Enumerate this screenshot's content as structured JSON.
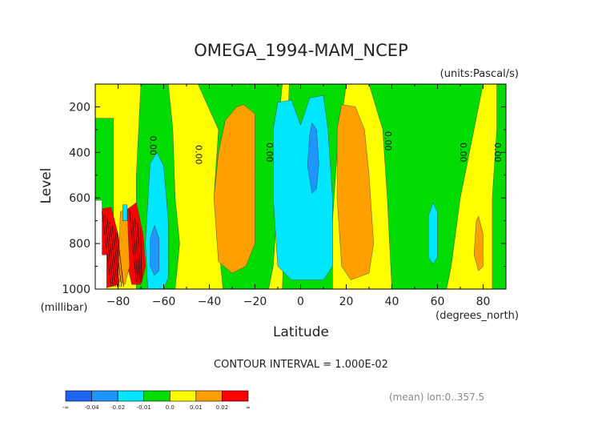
{
  "chart_data": {
    "type": "contour",
    "title": "OMEGA_1994-MAM_NCEP",
    "units_label": "(units:Pascal/s)",
    "xlabel": "Latitude",
    "x_units_label": "(degrees_north)",
    "ylabel": "Level",
    "y_units_label": "(millibar)",
    "xlim": [
      -90,
      90
    ],
    "ylim": [
      1000,
      100
    ],
    "x_ticks": [
      -80,
      -60,
      -40,
      -20,
      0,
      20,
      40,
      60,
      80
    ],
    "y_ticks": [
      200,
      400,
      600,
      800,
      1000
    ],
    "contour_interval_text": "CONTOUR INTERVAL = 1.000E-02",
    "footer_text": "(mean) lon:0..357.5",
    "zero_contour_label": "0.00",
    "zero_label_positions": [
      {
        "lat": -66,
        "lev": 370
      },
      {
        "lat": -46,
        "lev": 410
      },
      {
        "lat": -15,
        "lev": 400
      },
      {
        "lat": 37,
        "lev": 350
      },
      {
        "lat": 70,
        "lev": 400
      },
      {
        "lat": 85,
        "lev": 400
      }
    ],
    "legend": {
      "levels": [
        "-∞",
        "-0.04",
        "-0.02",
        "-0.01",
        "0.0",
        "0.01",
        "0.02",
        "∞"
      ],
      "colors": [
        "#1e64f0",
        "#1e96ff",
        "#00e6ff",
        "#00dc00",
        "#ffff00",
        "#ffa000",
        "#ff0000"
      ]
    },
    "regions": [
      {
        "name": "green-band-s70",
        "color": "#00dc00",
        "points": [
          [
            -70,
            100
          ],
          [
            -58,
            100
          ],
          [
            -56,
            300
          ],
          [
            -55,
            600
          ],
          [
            -53,
            800
          ],
          [
            -55,
            1000
          ],
          [
            -72,
            1000
          ],
          [
            -72,
            500
          ]
        ]
      },
      {
        "name": "green-band-s20",
        "color": "#00dc00",
        "points": [
          [
            -45,
            100
          ],
          [
            -8,
            100
          ],
          [
            -10,
            300
          ],
          [
            -10,
            600
          ],
          [
            -12,
            900
          ],
          [
            -14,
            1000
          ],
          [
            -34,
            1000
          ],
          [
            -38,
            600
          ],
          [
            -36,
            300
          ]
        ]
      },
      {
        "name": "green-band-s5",
        "color": "#00dc00",
        "points": [
          [
            -5,
            100
          ],
          [
            20,
            100
          ],
          [
            16,
            400
          ],
          [
            14,
            700
          ],
          [
            14,
            1000
          ],
          [
            -8,
            1000
          ]
        ]
      },
      {
        "name": "green-band-n40",
        "color": "#00dc00",
        "points": [
          [
            30,
            100
          ],
          [
            80,
            100
          ],
          [
            76,
            300
          ],
          [
            70,
            600
          ],
          [
            66,
            900
          ],
          [
            64,
            1000
          ],
          [
            40,
            1000
          ],
          [
            38,
            600
          ],
          [
            36,
            300
          ]
        ]
      },
      {
        "name": "green-band-n90",
        "color": "#00dc00",
        "points": [
          [
            86,
            100
          ],
          [
            90,
            100
          ],
          [
            90,
            1000
          ],
          [
            84,
            1000
          ],
          [
            84,
            600
          ],
          [
            86,
            300
          ]
        ]
      },
      {
        "name": "green-patch-sw",
        "color": "#00dc00",
        "points": [
          [
            -90,
            250
          ],
          [
            -82,
            250
          ],
          [
            -82,
            700
          ],
          [
            -90,
            700
          ]
        ]
      },
      {
        "name": "orange-blob-s25",
        "color": "#ffa000",
        "points": [
          [
            -25,
            190
          ],
          [
            -20,
            230
          ],
          [
            -20,
            500
          ],
          [
            -20,
            800
          ],
          [
            -24,
            900
          ],
          [
            -30,
            930
          ],
          [
            -36,
            880
          ],
          [
            -38,
            600
          ],
          [
            -36,
            400
          ],
          [
            -33,
            260
          ],
          [
            -28,
            200
          ]
        ]
      },
      {
        "name": "orange-blob-n20",
        "color": "#ffa000",
        "points": [
          [
            18,
            190
          ],
          [
            24,
            200
          ],
          [
            28,
            300
          ],
          [
            30,
            500
          ],
          [
            32,
            800
          ],
          [
            30,
            930
          ],
          [
            22,
            960
          ],
          [
            18,
            900
          ],
          [
            16,
            600
          ],
          [
            16,
            300
          ]
        ]
      },
      {
        "name": "orange-strip-n80",
        "color": "#ffa000",
        "points": [
          [
            78,
            680
          ],
          [
            80,
            760
          ],
          [
            80,
            900
          ],
          [
            78,
            920
          ],
          [
            76,
            850
          ],
          [
            77,
            700
          ]
        ]
      },
      {
        "name": "cyan-band-s60",
        "color": "#00e6ff",
        "points": [
          [
            -63,
            400
          ],
          [
            -60,
            460
          ],
          [
            -58,
            700
          ],
          [
            -58,
            950
          ],
          [
            -60,
            1000
          ],
          [
            -67,
            1000
          ],
          [
            -68,
            800
          ],
          [
            -66,
            450
          ]
        ]
      },
      {
        "name": "cyan-band-eq",
        "color": "#00e6ff",
        "points": [
          [
            -10,
            180
          ],
          [
            -4,
            170
          ],
          [
            0,
            280
          ],
          [
            4,
            160
          ],
          [
            10,
            150
          ],
          [
            12,
            300
          ],
          [
            14,
            600
          ],
          [
            14,
            900
          ],
          [
            10,
            960
          ],
          [
            -4,
            960
          ],
          [
            -10,
            900
          ],
          [
            -12,
            600
          ],
          [
            -12,
            300
          ]
        ]
      },
      {
        "name": "cyan-strip-n60",
        "color": "#00e6ff",
        "points": [
          [
            58,
            620
          ],
          [
            60,
            660
          ],
          [
            60,
            860
          ],
          [
            58,
            890
          ],
          [
            56,
            860
          ],
          [
            56,
            680
          ]
        ]
      },
      {
        "name": "blue-strip-s63",
        "color": "#1e96ff",
        "points": [
          [
            -64,
            720
          ],
          [
            -62,
            780
          ],
          [
            -62,
            920
          ],
          [
            -64,
            940
          ],
          [
            -66,
            900
          ],
          [
            -66,
            780
          ]
        ]
      },
      {
        "name": "blue-strip-eq",
        "color": "#1e96ff",
        "points": [
          [
            5,
            270
          ],
          [
            7,
            300
          ],
          [
            8,
            450
          ],
          [
            7,
            560
          ],
          [
            5,
            580
          ],
          [
            3,
            460
          ],
          [
            4,
            320
          ]
        ]
      },
      {
        "name": "red-plume-s80",
        "color": "#ff0000",
        "points": [
          [
            -88,
            650
          ],
          [
            -83,
            640
          ],
          [
            -80,
            760
          ],
          [
            -78,
            880
          ],
          [
            -80,
            980
          ],
          [
            -87,
            1000
          ],
          [
            -88,
            800
          ]
        ]
      },
      {
        "name": "red-plume-s72",
        "color": "#ff0000",
        "points": [
          [
            -76,
            650
          ],
          [
            -72,
            620
          ],
          [
            -69,
            760
          ],
          [
            -68,
            900
          ],
          [
            -70,
            980
          ],
          [
            -74,
            980
          ],
          [
            -77,
            850
          ]
        ]
      },
      {
        "name": "orange-halo-s76",
        "color": "#ffa000",
        "points": [
          [
            -79,
            660
          ],
          [
            -76,
            650
          ],
          [
            -75,
            900
          ],
          [
            -77,
            980
          ],
          [
            -80,
            960
          ]
        ]
      },
      {
        "name": "cyan-spot-s78",
        "color": "#00e6ff",
        "points": [
          [
            -78,
            630
          ],
          [
            -76,
            630
          ],
          [
            -76,
            700
          ],
          [
            -78,
            700
          ]
        ]
      },
      {
        "name": "white-gap-sw",
        "color": "#ffffff",
        "points": [
          [
            -90,
            610
          ],
          [
            -87,
            610
          ],
          [
            -87,
            850
          ],
          [
            -85,
            850
          ],
          [
            -85,
            1000
          ],
          [
            -90,
            1000
          ]
        ]
      }
    ]
  }
}
